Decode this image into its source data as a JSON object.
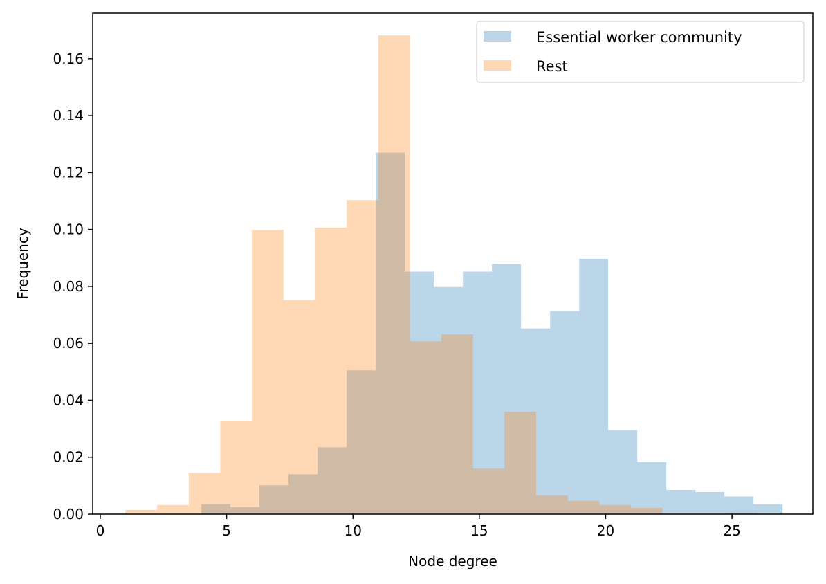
{
  "chart_data": {
    "type": "bar",
    "subtype": "overlapping-histogram",
    "xlabel": "Node degree",
    "ylabel": "Frequency",
    "xlim": [
      -0.3,
      28.2
    ],
    "ylim": [
      0,
      0.176
    ],
    "xticks": [
      0,
      5,
      10,
      15,
      20,
      25
    ],
    "yticks": [
      0.0,
      0.02,
      0.04,
      0.06,
      0.08,
      0.1,
      0.12,
      0.14,
      0.16
    ],
    "ytick_labels": [
      "0.00",
      "0.02",
      "0.04",
      "0.06",
      "0.08",
      "0.10",
      "0.12",
      "0.14",
      "0.16"
    ],
    "grid": false,
    "legend_position": "top-right",
    "series": [
      {
        "name": "Essential worker community",
        "color": "#1f77b4",
        "alpha": 0.3,
        "bin_edges": [
          4.0,
          5.15,
          6.3,
          7.45,
          8.6,
          9.75,
          10.9,
          12.05,
          13.2,
          14.35,
          15.5,
          16.65,
          17.8,
          18.95,
          20.1,
          21.25,
          22.4,
          23.55,
          24.7,
          25.85,
          27.0
        ],
        "values": [
          0.0035,
          0.0025,
          0.0102,
          0.014,
          0.0235,
          0.0505,
          0.127,
          0.0852,
          0.0798,
          0.0852,
          0.0878,
          0.0652,
          0.0713,
          0.0897,
          0.0295,
          0.0183,
          0.0085,
          0.0078,
          0.0062,
          0.0035
        ]
      },
      {
        "name": "Rest",
        "color": "#ff7f0e",
        "alpha": 0.3,
        "bin_edges": [
          1.0,
          2.25,
          3.5,
          4.75,
          6.0,
          7.25,
          8.5,
          9.75,
          11.0,
          12.25,
          13.5,
          14.75,
          16.0,
          17.25,
          18.5,
          19.75,
          21.0,
          22.25,
          23.5,
          24.75,
          26.0
        ],
        "values": [
          0.0015,
          0.0032,
          0.0145,
          0.0328,
          0.0998,
          0.0752,
          0.1007,
          0.1103,
          0.1682,
          0.0607,
          0.0632,
          0.016,
          0.036,
          0.0065,
          0.0047,
          0.0032,
          0.0022,
          0.0002,
          0.0002,
          0.0005
        ]
      }
    ]
  }
}
